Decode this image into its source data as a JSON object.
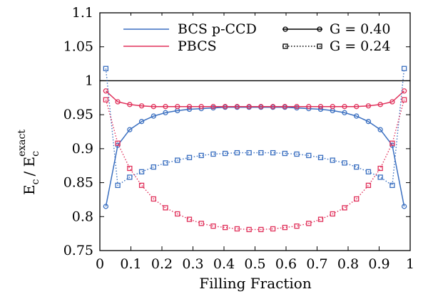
{
  "chart_data": {
    "type": "line",
    "xlabel": "Filling Fraction",
    "ylabel": "E",
    "ylabel_sub": "c",
    "ylabel_sep": "/ E",
    "ylabel_sub2": "c",
    "ylabel_sup2": "exact",
    "xlim": [
      0,
      1
    ],
    "ylim": [
      0.75,
      1.1
    ],
    "xticks": [
      "0",
      "0.1",
      "0.2",
      "0.3",
      "0.4",
      "0.5",
      "0.6",
      "0.7",
      "0.8",
      "0.9",
      "1"
    ],
    "xtick_values": [
      0,
      0.1,
      0.2,
      0.3,
      0.4,
      0.5,
      0.6,
      0.7,
      0.8,
      0.9,
      1
    ],
    "yticks": [
      "0.75",
      "0.8",
      "0.85",
      "0.9",
      "0.95",
      "1",
      "1.05",
      "1.1"
    ],
    "ytick_values": [
      0.75,
      0.8,
      0.85,
      0.9,
      0.95,
      1.0,
      1.05,
      1.1
    ],
    "reference_line_y": 1.0,
    "legend_placement": "top",
    "legend": {
      "methods": [
        {
          "name": "BCS p-CCD",
          "color": "#3a6fc0"
        },
        {
          "name": "PBCS",
          "color": "#e0305a"
        }
      ],
      "couplings": [
        {
          "name": "G = 0.40",
          "style": "solid",
          "marker": "circle"
        },
        {
          "name": "G = 0.24",
          "style": "dotted",
          "marker": "square"
        }
      ]
    },
    "x": [
      0.0192,
      0.0577,
      0.0962,
      0.1346,
      0.1731,
      0.2115,
      0.25,
      0.2885,
      0.3269,
      0.3654,
      0.4038,
      0.4423,
      0.4808,
      0.5192,
      0.5577,
      0.5962,
      0.6346,
      0.6731,
      0.7115,
      0.75,
      0.7885,
      0.8269,
      0.8654,
      0.9038,
      0.9423,
      0.9808
    ],
    "series": [
      {
        "name": "BCS p-CCD, G = 0.40",
        "color": "#3a6fc0",
        "style": "solid",
        "marker": "circle",
        "values": [
          0.815,
          0.905,
          0.928,
          0.94,
          0.948,
          0.953,
          0.956,
          0.958,
          0.959,
          0.96,
          0.961,
          0.961,
          0.961,
          0.961,
          0.961,
          0.961,
          0.96,
          0.959,
          0.958,
          0.956,
          0.953,
          0.948,
          0.94,
          0.928,
          0.905,
          0.815
        ]
      },
      {
        "name": "PBCS, G = 0.40",
        "color": "#e0305a",
        "style": "solid",
        "marker": "circle",
        "values": [
          0.985,
          0.969,
          0.965,
          0.963,
          0.962,
          0.962,
          0.962,
          0.962,
          0.962,
          0.962,
          0.962,
          0.962,
          0.962,
          0.962,
          0.962,
          0.962,
          0.962,
          0.962,
          0.962,
          0.962,
          0.962,
          0.962,
          0.963,
          0.965,
          0.969,
          0.985
        ]
      },
      {
        "name": "BCS p-CCD, G = 0.24",
        "color": "#3a6fc0",
        "style": "dotted",
        "marker": "square",
        "values": [
          1.018,
          0.846,
          0.858,
          0.866,
          0.873,
          0.879,
          0.883,
          0.887,
          0.89,
          0.892,
          0.893,
          0.894,
          0.894,
          0.894,
          0.894,
          0.893,
          0.892,
          0.89,
          0.887,
          0.883,
          0.879,
          0.873,
          0.866,
          0.858,
          0.846,
          1.018
        ]
      },
      {
        "name": "PBCS, G = 0.24",
        "color": "#e0305a",
        "style": "dotted",
        "marker": "square",
        "values": [
          0.972,
          0.908,
          0.871,
          0.846,
          0.826,
          0.813,
          0.804,
          0.796,
          0.79,
          0.786,
          0.784,
          0.782,
          0.781,
          0.781,
          0.782,
          0.784,
          0.786,
          0.79,
          0.796,
          0.804,
          0.813,
          0.826,
          0.846,
          0.871,
          0.908,
          0.972
        ]
      }
    ]
  }
}
